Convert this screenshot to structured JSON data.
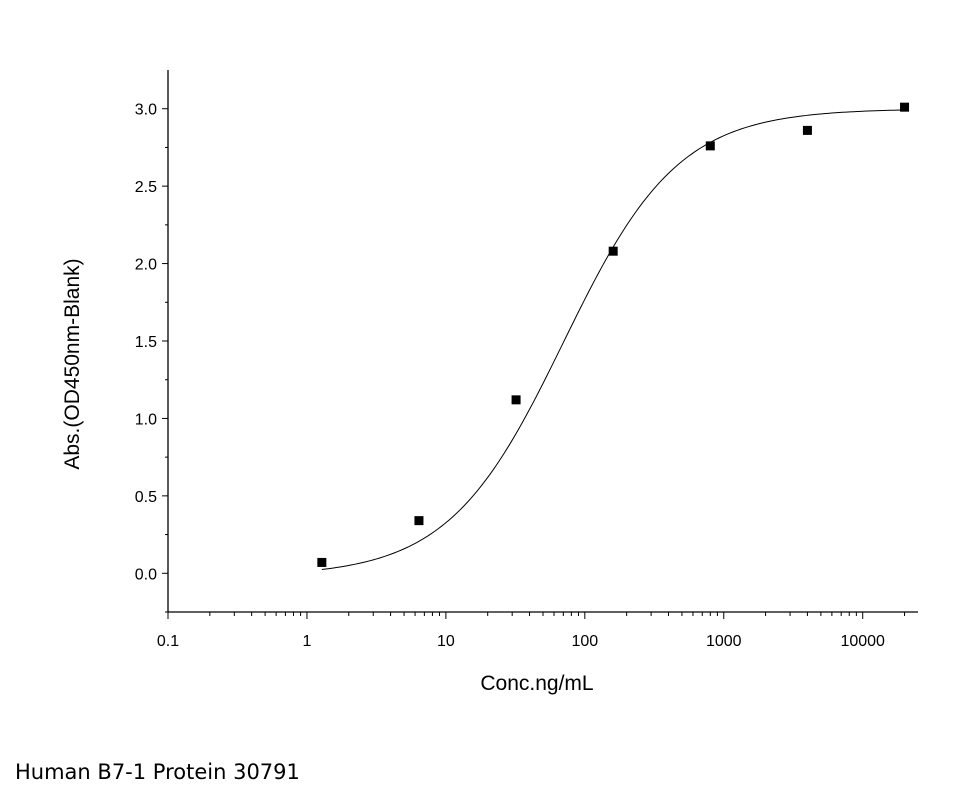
{
  "chart_data": {
    "type": "scatter",
    "xscale": "log",
    "xlabel": "Conc.ng/mL",
    "ylabel": "Abs.(OD450nm-Blank)",
    "xlim": [
      0.1,
      25000
    ],
    "ylim": [
      -0.25,
      3.25
    ],
    "xticks": [
      {
        "value": 0.1,
        "label": "0.1"
      },
      {
        "value": 1,
        "label": "1"
      },
      {
        "value": 10,
        "label": "10"
      },
      {
        "value": 100,
        "label": "100"
      },
      {
        "value": 1000,
        "label": "1000"
      },
      {
        "value": 10000,
        "label": "10000"
      }
    ],
    "yticks": [
      {
        "value": 0.0,
        "label": "0.0"
      },
      {
        "value": 0.5,
        "label": "0.5"
      },
      {
        "value": 1.0,
        "label": "1.0"
      },
      {
        "value": 1.5,
        "label": "1.5"
      },
      {
        "value": 2.0,
        "label": "2.0"
      },
      {
        "value": 2.5,
        "label": "2.5"
      },
      {
        "value": 3.0,
        "label": "3.0"
      }
    ],
    "points": [
      {
        "x": 1.28,
        "y": 0.07
      },
      {
        "x": 6.4,
        "y": 0.34
      },
      {
        "x": 32,
        "y": 1.12
      },
      {
        "x": 160,
        "y": 2.08
      },
      {
        "x": 800,
        "y": 2.76
      },
      {
        "x": 4000,
        "y": 2.86
      },
      {
        "x": 20000,
        "y": 3.01
      }
    ],
    "fit_curve": {
      "type": "4PL",
      "bottom": -0.02,
      "top": 3.0,
      "ec50": 70,
      "hill": 1.05,
      "x_from": 1.28,
      "x_to": 20000
    },
    "grid": false,
    "marker_color": "#000000",
    "line_color": "#000000"
  },
  "caption": "Human B7-1 Protein 30791"
}
